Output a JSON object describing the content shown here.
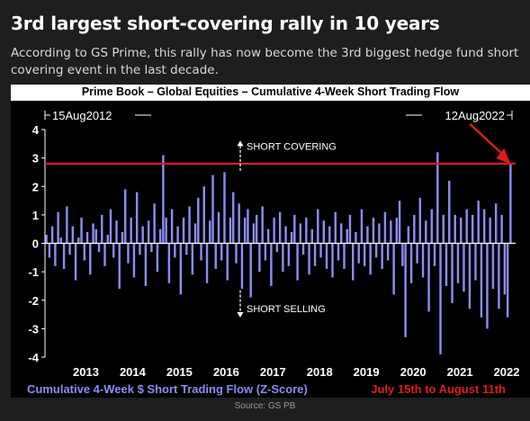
{
  "headline": "3rd largest short-covering rally in 10 years",
  "subtitle": "According to GS Prime, this rally has now become the 3rd biggest hedge fund short covering event in the last decade.",
  "source": "Source: GS PB",
  "colors": {
    "bars": "#8c8cf5",
    "threshold": "#e21b1b",
    "axis": "#ffffff",
    "background": "#000000"
  },
  "chart_data": {
    "type": "bar",
    "title": "Prime Book – Global Equities – Cumulative 4-Week Short Trading Flow",
    "xlabel": "",
    "ylabel": "",
    "ylim": [
      -4,
      4
    ],
    "yticks": [
      4,
      3,
      2,
      1,
      0,
      -1,
      -2,
      -3,
      -4
    ],
    "xticks": [
      "2013",
      "2014",
      "2015",
      "2016",
      "2017",
      "2018",
      "2019",
      "2020",
      "2021",
      "2022"
    ],
    "xlim": [
      "2012-08-15",
      "2022-08-12"
    ],
    "start_label": "15Aug2012",
    "end_label": "12Aug2022",
    "annotations": {
      "up": "SHORT COVERING",
      "down": "SHORT SELLING"
    },
    "threshold": 2.8,
    "legend": [
      "Cumulative 4-Week $ Short Trading Flow (Z-Score)",
      "July 15th to August 11th"
    ],
    "series": [
      {
        "name": "Cumulative 4-Week $ Short Trading Flow (Z-Score)",
        "values": [
          0.3,
          -0.5,
          0.6,
          -0.8,
          1.1,
          0.2,
          -0.9,
          1.3,
          -0.4,
          0.6,
          -1.3,
          0.2,
          0.9,
          -0.6,
          0.4,
          -1.1,
          0.7,
          0.5,
          -0.3,
          1.0,
          -0.8,
          0.3,
          1.2,
          -0.5,
          0.8,
          -1.6,
          0.4,
          1.9,
          -0.7,
          0.9,
          -1.2,
          1.8,
          -0.4,
          0.6,
          -1.5,
          0.8,
          -0.3,
          1.4,
          -1.0,
          0.5,
          3.1,
          0.9,
          -1.4,
          1.2,
          -0.5,
          0.6,
          -1.8,
          0.9,
          -0.4,
          1.3,
          -1.1,
          0.7,
          1.6,
          -0.6,
          2.0,
          -1.4,
          0.8,
          2.4,
          -0.9,
          1.1,
          -0.6,
          2.5,
          -1.3,
          0.9,
          1.8,
          -0.7,
          1.4,
          -1.6,
          0.9,
          1.2,
          -1.9,
          0.7,
          1.0,
          -1.0,
          1.3,
          -0.6,
          0.5,
          -1.5,
          0.9,
          -0.3,
          1.1,
          -1.0,
          0.6,
          -0.8,
          0.4,
          1.0,
          -1.3,
          0.7,
          -0.4,
          0.9,
          -1.1,
          0.5,
          -0.8,
          1.2,
          -0.5,
          0.8,
          -0.9,
          0.6,
          -1.2,
          1.1,
          -0.6,
          0.7,
          -0.9,
          0.5,
          1.0,
          -1.3,
          0.4,
          -0.7,
          1.2,
          -0.8,
          0.6,
          -1.1,
          0.9,
          -0.5,
          0.7,
          -0.9,
          1.1,
          -0.6,
          0.8,
          -1.8,
          0.9,
          1.5,
          -0.8,
          -3.3,
          0.6,
          -1.4,
          1.0,
          -0.7,
          1.6,
          -1.2,
          0.8,
          -2.4,
          1.2,
          -0.8,
          3.2,
          -3.9,
          1.0,
          -1.5,
          2.2,
          -2.1,
          1.0,
          -1.4,
          0.9,
          -1.7,
          1.2,
          -2.3,
          1.0,
          -1.3,
          1.5,
          -2.6,
          1.2,
          -3.0,
          0.9,
          -1.6,
          1.4,
          -2.3,
          1.0,
          -1.8,
          -2.6,
          2.8
        ]
      }
    ]
  }
}
